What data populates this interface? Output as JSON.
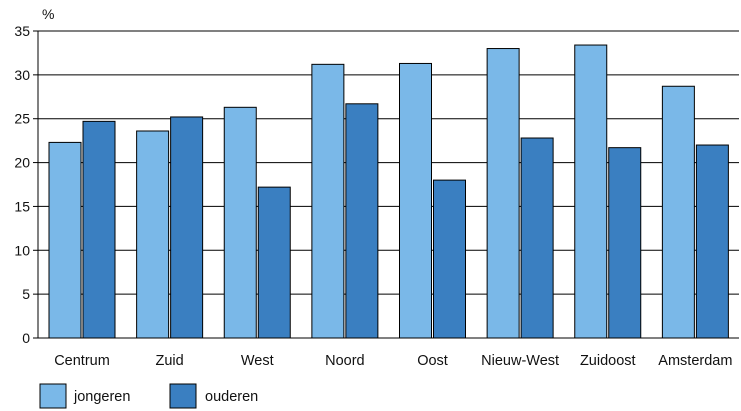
{
  "chart_data": {
    "type": "bar",
    "ylabel": "%",
    "ylim": [
      0,
      35
    ],
    "yticks": [
      0,
      5,
      10,
      15,
      20,
      25,
      30,
      35
    ],
    "grid": true,
    "legend_position": "bottom-left",
    "categories": [
      "Centrum",
      "Zuid",
      "West",
      "Noord",
      "Oost",
      "Nieuw-West",
      "Zuidoost",
      "Amsterdam"
    ],
    "series": [
      {
        "name": "jongeren",
        "color": "#7ab8e8",
        "values": [
          22.3,
          23.6,
          26.3,
          31.2,
          31.3,
          33.0,
          33.4,
          28.7
        ]
      },
      {
        "name": "ouderen",
        "color": "#3a7fc1",
        "values": [
          24.7,
          25.2,
          17.2,
          26.7,
          18.0,
          22.8,
          21.7,
          22.0
        ]
      }
    ]
  }
}
